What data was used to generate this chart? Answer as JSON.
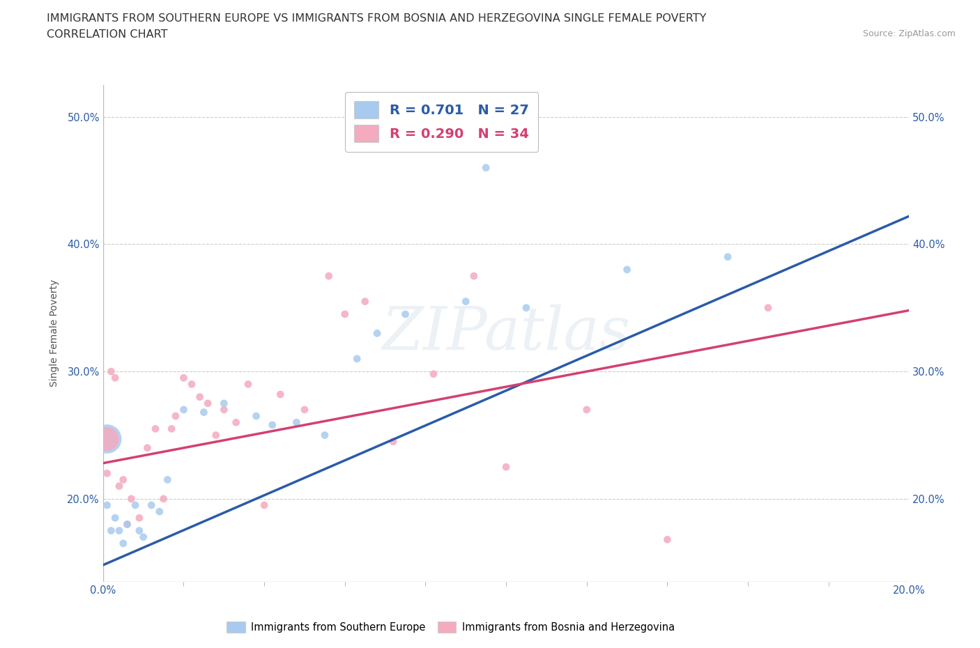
{
  "title_line1": "IMMIGRANTS FROM SOUTHERN EUROPE VS IMMIGRANTS FROM BOSNIA AND HERZEGOVINA SINGLE FEMALE POVERTY",
  "title_line2": "CORRELATION CHART",
  "source": "Source: ZipAtlas.com",
  "ylabel": "Single Female Poverty",
  "xlim": [
    0.0,
    0.2
  ],
  "ylim": [
    0.135,
    0.525
  ],
  "ytick_labels": [
    "20.0%",
    "30.0%",
    "40.0%",
    "50.0%"
  ],
  "ytick_values": [
    0.2,
    0.3,
    0.4,
    0.5
  ],
  "xtick_labels": [
    "0.0%",
    "20.0%"
  ],
  "xtick_values": [
    0.0,
    0.2
  ],
  "blue_R": 0.701,
  "blue_N": 27,
  "pink_R": 0.29,
  "pink_N": 34,
  "blue_color": "#A8CAEE",
  "pink_color": "#F4AABF",
  "blue_line_color": "#2A5BA8",
  "pink_line_color": "#D44070",
  "background_color": "#FFFFFF",
  "watermark": "ZIPatlas",
  "blue_scatter_x": [
    0.001,
    0.002,
    0.003,
    0.004,
    0.005,
    0.006,
    0.008,
    0.009,
    0.01,
    0.012,
    0.014,
    0.016,
    0.02,
    0.025,
    0.03,
    0.038,
    0.042,
    0.048,
    0.055,
    0.063,
    0.068,
    0.075,
    0.09,
    0.095,
    0.105,
    0.13,
    0.155
  ],
  "blue_scatter_y": [
    0.195,
    0.175,
    0.185,
    0.175,
    0.165,
    0.18,
    0.195,
    0.175,
    0.17,
    0.195,
    0.19,
    0.215,
    0.27,
    0.268,
    0.275,
    0.265,
    0.258,
    0.26,
    0.25,
    0.31,
    0.33,
    0.345,
    0.355,
    0.46,
    0.35,
    0.38,
    0.39
  ],
  "blue_scatter_size": [
    60,
    60,
    60,
    60,
    60,
    60,
    60,
    60,
    60,
    60,
    60,
    60,
    60,
    60,
    60,
    60,
    60,
    60,
    60,
    60,
    60,
    60,
    60,
    60,
    60,
    60,
    60
  ],
  "blue_large_x": [
    0.001
  ],
  "blue_large_y": [
    0.247
  ],
  "blue_large_size": [
    900
  ],
  "pink_scatter_x": [
    0.001,
    0.002,
    0.003,
    0.004,
    0.005,
    0.006,
    0.007,
    0.009,
    0.011,
    0.013,
    0.015,
    0.017,
    0.018,
    0.02,
    0.022,
    0.024,
    0.026,
    0.028,
    0.03,
    0.033,
    0.036,
    0.04,
    0.044,
    0.05,
    0.056,
    0.06,
    0.065,
    0.072,
    0.082,
    0.092,
    0.1,
    0.12,
    0.14,
    0.165
  ],
  "pink_scatter_y": [
    0.22,
    0.3,
    0.295,
    0.21,
    0.215,
    0.18,
    0.2,
    0.185,
    0.24,
    0.255,
    0.2,
    0.255,
    0.265,
    0.295,
    0.29,
    0.28,
    0.275,
    0.25,
    0.27,
    0.26,
    0.29,
    0.195,
    0.282,
    0.27,
    0.375,
    0.345,
    0.355,
    0.245,
    0.298,
    0.375,
    0.225,
    0.27,
    0.168,
    0.35
  ],
  "pink_scatter_size": [
    60,
    60,
    60,
    60,
    60,
    60,
    60,
    60,
    60,
    60,
    60,
    60,
    60,
    60,
    60,
    60,
    60,
    60,
    60,
    60,
    60,
    60,
    60,
    60,
    60,
    60,
    60,
    60,
    60,
    60,
    60,
    60,
    60,
    60
  ],
  "pink_large_x": [
    0.001
  ],
  "pink_large_y": [
    0.247
  ],
  "pink_large_size": [
    600
  ],
  "title_fontsize": 11.5,
  "axis_label_fontsize": 10,
  "tick_fontsize": 10.5,
  "legend_fontsize": 14
}
